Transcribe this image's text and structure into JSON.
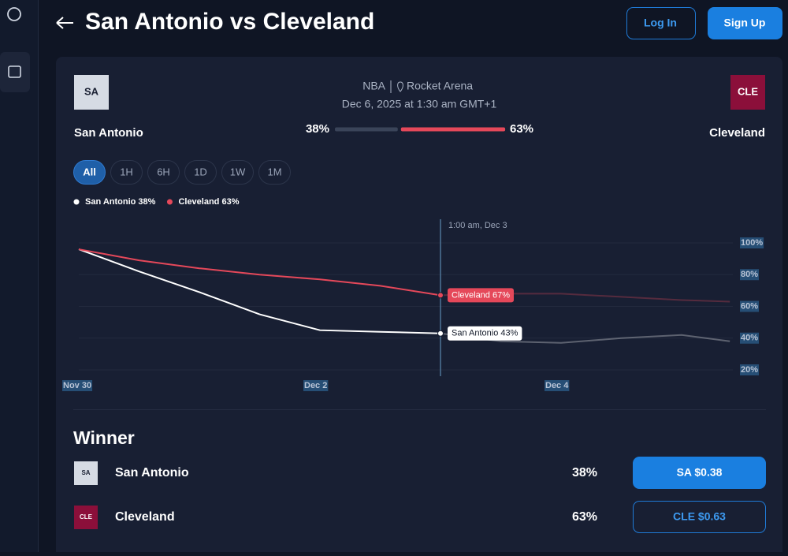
{
  "header": {
    "title": "San Antonio vs Cleveland",
    "login": "Log In",
    "signup": "Sign Up"
  },
  "match": {
    "home": {
      "abbr": "SA",
      "name": "San Antonio"
    },
    "away": {
      "abbr": "CLE",
      "name": "Cleveland"
    },
    "league": "NBA",
    "venue": "Rocket Arena",
    "date": "Dec 6, 2025 at 1:30 am GMT+1",
    "odds": [
      {
        "value": 38,
        "label": "38%"
      },
      {
        "value": 63,
        "label": "63%"
      }
    ]
  },
  "filters": {
    "options": [
      "All",
      "1H",
      "6H",
      "1D",
      "1W",
      "1M"
    ],
    "selected": "All"
  },
  "chart_data": {
    "type": "line",
    "x": [
      0,
      0.5,
      1,
      1.5,
      2,
      2.5,
      3,
      3.5,
      4,
      4.5,
      5,
      5.4
    ],
    "series": [
      {
        "name": "San Antonio 38%",
        "color": "#ffffff",
        "values": [
          96,
          82,
          69,
          55,
          45,
          44,
          43,
          38,
          37,
          40,
          42,
          38
        ]
      },
      {
        "name": "Cleveland 63%",
        "color": "#e5485a",
        "values": [
          96,
          89,
          84,
          80,
          77,
          73,
          67,
          68,
          68,
          66,
          64,
          63
        ]
      }
    ],
    "xlim": [
      0,
      5.5
    ],
    "xticks": [
      {
        "value": 0,
        "label": "Nov 30"
      },
      {
        "value": 2,
        "label": "Dec 2"
      },
      {
        "value": 4,
        "label": "Dec 4"
      }
    ],
    "ylim": [
      20,
      100
    ],
    "yticks": [
      {
        "value": 20,
        "label": "20%"
      },
      {
        "value": 40,
        "label": "40%"
      },
      {
        "value": 60,
        "label": "60%"
      },
      {
        "value": 80,
        "label": "80%"
      },
      {
        "value": 100,
        "label": "100%"
      }
    ],
    "grid": true,
    "hover": {
      "x": 3,
      "title": "1:00 am, Dec 3",
      "labels": [
        "San Antonio 43%",
        "Cleveland 67%"
      ]
    }
  },
  "winner": {
    "title": "Winner",
    "rows": [
      {
        "abbr": "SA",
        "name": "San Antonio",
        "chance": "38%",
        "button": "SA $0.38"
      },
      {
        "abbr": "CLE",
        "name": "Cleveland",
        "chance": "63%",
        "button": "CLE $0.63"
      }
    ]
  }
}
